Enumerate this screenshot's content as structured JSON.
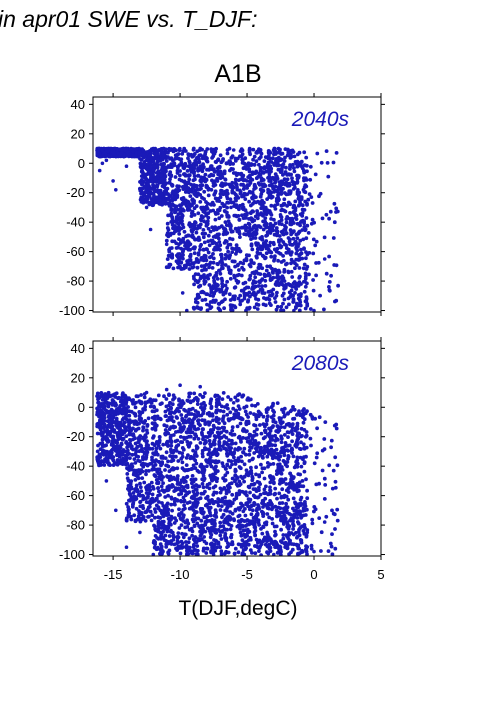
{
  "figure": {
    "header": "in apr01 SWE vs. T_DJF:",
    "scenario": "A1B",
    "point_color": "#1a1ab8"
  },
  "chart_data": [
    {
      "type": "scatter",
      "title": "A1B",
      "annotation": "2040s",
      "xlabel": "T(DJF,degC)",
      "ylabel": "",
      "xlim": [
        -16.5,
        5
      ],
      "ylim": [
        -101,
        45
      ],
      "xticks": [
        -15,
        -10,
        -5,
        0,
        5
      ],
      "yticks": [
        40,
        20,
        0,
        -20,
        -40,
        -60,
        -80,
        -100
      ],
      "grid": false,
      "series": [
        {
          "color": "#1a1ab8",
          "points": [
            [
              -16,
              -5
            ],
            [
              -15.8,
              0
            ],
            [
              -15.5,
              2
            ],
            [
              -15,
              -12
            ],
            [
              -14.8,
              -18
            ],
            [
              -14.5,
              5
            ],
            [
              -14,
              -2
            ],
            [
              -13.5,
              8
            ],
            [
              -13,
              3
            ],
            [
              -12.5,
              -30
            ],
            [
              -12.2,
              -45
            ],
            [
              -12,
              10
            ],
            [
              -11.5,
              -22
            ],
            [
              -11,
              -55
            ],
            [
              -10.8,
              -70
            ],
            [
              -10.5,
              8
            ],
            [
              -10,
              -38
            ],
            [
              -9.8,
              -88
            ],
            [
              -9.5,
              -100
            ],
            [
              -9.2,
              -62
            ],
            [
              -9,
              5
            ],
            [
              -8.5,
              -15
            ],
            [
              -8.2,
              -78
            ],
            [
              -8,
              -96
            ],
            [
              -7.5,
              -50
            ],
            [
              -7.2,
              2
            ],
            [
              -7,
              -100
            ],
            [
              -6.5,
              -85
            ],
            [
              -6.2,
              -30
            ],
            [
              -6,
              9
            ],
            [
              -5.5,
              -60
            ],
            [
              -5.2,
              -92
            ],
            [
              -5,
              -12
            ],
            [
              -4.5,
              -44
            ],
            [
              -4.2,
              -99
            ],
            [
              -4,
              -3
            ],
            [
              -3.5,
              -70
            ],
            [
              -3.2,
              -20
            ],
            [
              -3,
              6
            ],
            [
              -2.8,
              -90
            ],
            [
              -2.5,
              -35
            ],
            [
              -2.2,
              -80
            ],
            [
              -2,
              -8
            ],
            [
              -1.8,
              -55
            ],
            [
              -1.5,
              -100
            ],
            [
              -1.2,
              -18
            ],
            [
              -1,
              -40
            ],
            [
              -0.5,
              -62
            ],
            [
              0,
              -100
            ],
            [
              0.8,
              -65
            ]
          ]
        }
      ]
    },
    {
      "type": "scatter",
      "annotation": "2080s",
      "xlabel": "T(DJF,degC)",
      "ylabel": "",
      "xlim": [
        -16.5,
        5
      ],
      "ylim": [
        -101,
        45
      ],
      "xticks": [
        -15,
        -10,
        -5,
        0,
        5
      ],
      "yticks": [
        40,
        20,
        0,
        -20,
        -40,
        -60,
        -80,
        -100
      ],
      "grid": false,
      "series": [
        {
          "color": "#1a1ab8",
          "points": [
            [
              -16.2,
              -5
            ],
            [
              -15.8,
              -25
            ],
            [
              -15.5,
              -50
            ],
            [
              -15,
              -10
            ],
            [
              -14.8,
              -70
            ],
            [
              -14.5,
              0
            ],
            [
              -14,
              -95
            ],
            [
              -13.8,
              -40
            ],
            [
              -13.5,
              5
            ],
            [
              -13,
              -85
            ],
            [
              -12.8,
              -60
            ],
            [
              -12.5,
              10
            ],
            [
              -12,
              -100
            ],
            [
              -11.8,
              -30
            ],
            [
              -11.5,
              -75
            ],
            [
              -11,
              12
            ],
            [
              -10.5,
              -90
            ],
            [
              -10.2,
              -50
            ],
            [
              -10,
              15
            ],
            [
              -9.5,
              -100
            ],
            [
              -9.2,
              -20
            ],
            [
              -9,
              -65
            ],
            [
              -8.5,
              14
            ],
            [
              -8.2,
              -88
            ],
            [
              -8,
              -40
            ],
            [
              -7.5,
              -100
            ],
            [
              -7.2,
              8
            ],
            [
              -7,
              -55
            ],
            [
              -6.5,
              -95
            ],
            [
              -6.2,
              -25
            ],
            [
              -6,
              3
            ],
            [
              -5.5,
              -78
            ],
            [
              -5.2,
              -100
            ],
            [
              -5,
              -10
            ],
            [
              -4.5,
              -60
            ],
            [
              -4.2,
              -92
            ],
            [
              -4,
              -30
            ],
            [
              -3.5,
              -85
            ],
            [
              -3.2,
              -48
            ],
            [
              -3,
              -100
            ],
            [
              -2.8,
              -70
            ],
            [
              -2.5,
              -95
            ],
            [
              -2.2,
              -60
            ],
            [
              -2,
              -88
            ],
            [
              -1.5,
              -75
            ],
            [
              -1.2,
              -100
            ],
            [
              -1,
              -90
            ],
            [
              -0.5,
              -85
            ],
            [
              0,
              -98
            ],
            [
              0.8,
              -78
            ]
          ]
        }
      ]
    }
  ]
}
